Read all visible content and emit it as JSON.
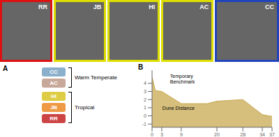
{
  "chart_data": [
    {
      "type": "photos",
      "categories": [
        "RR",
        "JB",
        "HI",
        "AC",
        "CC"
      ],
      "colors": [
        "#dd1111",
        "#dddd00",
        "#dddd00",
        "#dddd00",
        "#2244bb"
      ]
    },
    {
      "type": "sites",
      "title": "A",
      "categories": [
        "CC",
        "AC",
        "HI",
        "JB",
        "RR"
      ],
      "colors": [
        "#8ab0cc",
        "#c8a898",
        "#ddcc44",
        "#ee9944",
        "#cc4444"
      ],
      "annotations": [
        "Warm Temperate",
        "Tropical"
      ]
    },
    {
      "type": "area",
      "title": "B",
      "x": [
        0,
        1,
        3,
        9,
        17,
        20,
        28,
        34,
        36,
        37
      ],
      "values": [
        4.8,
        3.1,
        3.0,
        1.5,
        1.5,
        1.8,
        2.0,
        0.15,
        0.0,
        -0.05
      ],
      "color": "#c8a850",
      "xlim": [
        0,
        37
      ],
      "ylim": [
        -1.4,
        5.6
      ],
      "xticks": [
        0,
        3,
        9,
        20,
        28,
        34,
        37
      ],
      "yticks": [
        -1,
        0,
        1,
        2,
        3,
        4
      ],
      "annotations": [
        "Dune Distance",
        "Temporary\nBenchmark"
      ]
    }
  ]
}
